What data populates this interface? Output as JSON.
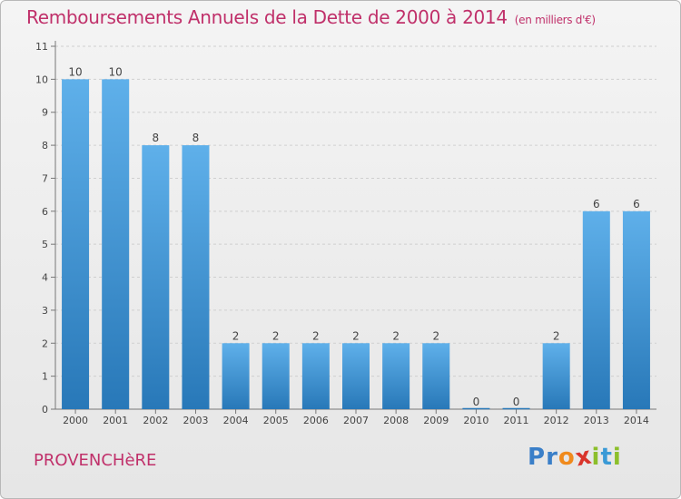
{
  "header": {
    "title": "Remboursements Annuels de la Dette de 2000 à 2014",
    "subtitle": "(en milliers d'€)"
  },
  "footer": {
    "place": "PROVENCHèRE",
    "logo_text": "Proxiti"
  },
  "colors": {
    "title": "#c0306a",
    "bar_top": "#5fb0ea",
    "bar_bottom": "#2878b8",
    "logo": [
      "#3a7fc8",
      "#3a7fc8",
      "#f08a1c",
      "#d9342b",
      "#8cbf2b",
      "#3a9ad6",
      "#8cbf2b"
    ]
  },
  "chart_data": {
    "type": "bar",
    "categories": [
      "2000",
      "2001",
      "2002",
      "2003",
      "2004",
      "2005",
      "2006",
      "2007",
      "2008",
      "2009",
      "2010",
      "2011",
      "2012",
      "2013",
      "2014"
    ],
    "values": [
      10,
      10,
      8,
      8,
      2,
      2,
      2,
      2,
      2,
      2,
      0,
      0,
      2,
      6,
      6
    ],
    "data_labels": [
      "10",
      "10",
      "8",
      "8",
      "2",
      "2",
      "2",
      "2",
      "2",
      "2",
      "0",
      "0",
      "2",
      "6",
      "6"
    ],
    "y_ticks": [
      "0",
      "1",
      "2",
      "3",
      "4",
      "5",
      "6",
      "7",
      "8",
      "9",
      "10",
      "11"
    ],
    "ylim": [
      0,
      11
    ],
    "grid": "horizontal-dashed",
    "legend": "none"
  }
}
